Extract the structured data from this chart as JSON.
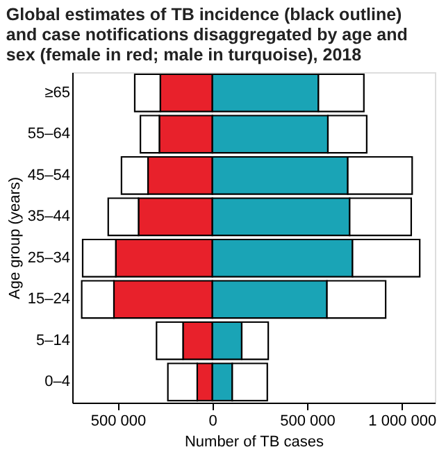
{
  "chart_data": {
    "type": "bar",
    "orientation": "horizontal",
    "stacked": true,
    "title": "Global estimates of TB incidence (black outline)\nand case notifications disaggregated by age and\nsex (female in red; male in turquoise), 2018",
    "xlabel": "Number of TB cases",
    "ylabel": "Age group (years)",
    "categories": [
      "≥65",
      "55–64",
      "45–54",
      "35–44",
      "25–34",
      "15–24",
      "5–14",
      "0–4"
    ],
    "series": [
      {
        "color": "#e8212b",
        "values": [
          -275000,
          -280000,
          -340000,
          -390000,
          -510000,
          -520000,
          -155000,
          -80000
        ]
      },
      {
        "color": "#1aa4b6",
        "values": [
          560000,
          610000,
          715000,
          725000,
          740000,
          605000,
          155000,
          105000
        ]
      },
      {
        "color": "#ffffff",
        "values": [
          -135000,
          -100000,
          -140000,
          -160000,
          -175000,
          -170000,
          -140000,
          -155000
        ]
      },
      {
        "color": "#ffffff",
        "values": [
          240000,
          205000,
          340000,
          325000,
          355000,
          310000,
          140000,
          185000
        ]
      }
    ],
    "xlim": [
      -740000,
      1175000
    ],
    "xticks": [
      {
        "value": -500000,
        "label": "500 000"
      },
      0,
      {
        "value": 500000,
        "label": "500 000"
      },
      {
        "value": 1000000,
        "label": "1 000 000"
      }
    ],
    "grid": false
  }
}
